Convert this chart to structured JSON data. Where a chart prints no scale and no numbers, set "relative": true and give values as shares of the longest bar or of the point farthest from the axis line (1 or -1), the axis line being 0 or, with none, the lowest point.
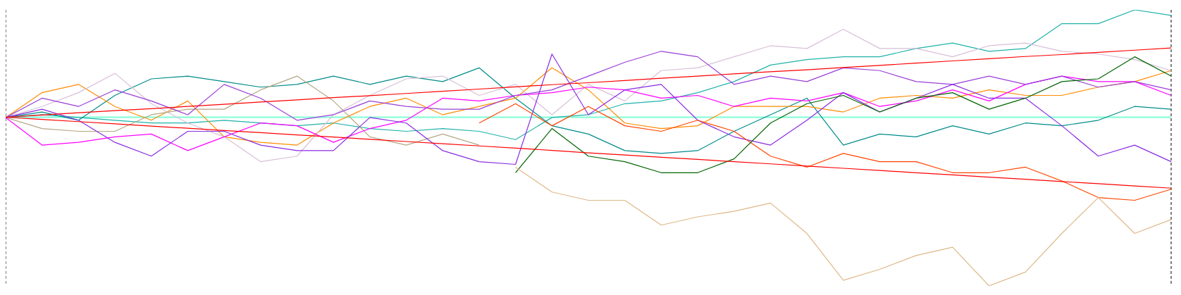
{
  "chart_data": {
    "type": "line",
    "relative": true,
    "grid": "x",
    "tick_labels": false,
    "marker": "none",
    "line_style": "solid",
    "categories": [
      null,
      null,
      null,
      null,
      null,
      null,
      null,
      null,
      null,
      null,
      null,
      null,
      null,
      null,
      null,
      null,
      null,
      null,
      null,
      null,
      null,
      null,
      null,
      null,
      null,
      null,
      null,
      null,
      null,
      null,
      null,
      null,
      null
    ],
    "ref_lines": [
      {
        "axis": "y",
        "value": 0.611,
        "color": "#7fffd4"
      }
    ],
    "series": [
      {
        "color": "#20b2aa",
        "values": [
          0.61,
          0.62,
          0.61,
          0.6,
          0.59,
          0.59,
          0.6,
          0.59,
          0.58,
          0.59,
          0.57,
          0.56,
          0.57,
          0.56,
          0.53,
          0.61,
          0.62,
          0.66,
          0.67,
          0.7,
          0.74,
          0.8,
          0.82,
          0.83,
          0.83,
          0.86,
          0.88,
          0.85,
          0.86,
          0.95,
          0.95,
          1,
          0.98
        ]
      },
      {
        "color": "#008b8b",
        "values": [
          0.61,
          0.63,
          0.6,
          0.69,
          0.75,
          0.76,
          0.74,
          0.72,
          0.73,
          0.76,
          0.73,
          0.76,
          0.74,
          0.79,
          0.68,
          0.58,
          0.55,
          0.49,
          0.48,
          0.49,
          0.56,
          0.62,
          0.68,
          0.51,
          0.55,
          0.54,
          0.58,
          0.55,
          0.59,
          0.58,
          0.6,
          0.65,
          0.64
        ]
      },
      {
        "color": "#ff8c00",
        "values": [
          0.61,
          0.7,
          0.73,
          0.65,
          0.6,
          0.67,
          0.54,
          0.52,
          0.51,
          0.59,
          0.65,
          0.68,
          0.62,
          0.65,
          0.68,
          0.79,
          0.71,
          0.59,
          0.57,
          0.58,
          0.65,
          0.65,
          0.65,
          0.63,
          0.68,
          0.69,
          0.68,
          0.71,
          0.69,
          0.69,
          0.72,
          0.74,
          0.78
        ]
      },
      {
        "color": "#d8bfd8",
        "values": [
          0.61,
          0.65,
          0.7,
          0.77,
          0.66,
          0.59,
          0.54,
          0.45,
          0.47,
          0.62,
          0.69,
          0.75,
          0.76,
          0.69,
          0.73,
          0.62,
          0.73,
          0.67,
          0.78,
          0.79,
          0.83,
          0.87,
          0.86,
          0.93,
          0.86,
          0.86,
          0.83,
          0.87,
          0.88,
          0.85,
          0.84,
          0.82,
          0.78
        ]
      },
      {
        "color": "#b4a782",
        "values": [
          0.61,
          0.57,
          0.56,
          0.56,
          0.62,
          0.64,
          0.64,
          0.71,
          0.76,
          0.67,
          0.54,
          0.51,
          0.55,
          0.51,
          null,
          null,
          null,
          null,
          null,
          null,
          null,
          null,
          null,
          null,
          null,
          null,
          null,
          null,
          null,
          null,
          null,
          null,
          null
        ]
      },
      {
        "color": "#ff00ff",
        "values": [
          0.61,
          0.51,
          0.52,
          0.54,
          0.55,
          0.49,
          0.54,
          0.59,
          0.58,
          0.52,
          0.57,
          0.6,
          0.68,
          0.67,
          0.69,
          0.7,
          0.72,
          0.71,
          0.68,
          0.69,
          0.65,
          0.68,
          0.67,
          0.7,
          0.65,
          0.67,
          0.71,
          0.67,
          0.73,
          0.76,
          0.74,
          0.74,
          0.69
        ]
      },
      {
        "color": "#9a3fd8",
        "values": [
          0.61,
          0.68,
          0.65,
          0.71,
          0.67,
          0.62,
          0.73,
          0.68,
          0.6,
          0.62,
          0.67,
          0.65,
          0.64,
          0.64,
          0.69,
          0.71,
          0.76,
          0.81,
          0.85,
          0.83,
          0.73,
          0.76,
          0.74,
          0.79,
          0.78,
          0.74,
          0.73,
          0.76,
          0.73,
          0.76,
          0.72,
          0.74,
          0.71
        ]
      },
      {
        "color": "#8a2be2",
        "values": [
          0.61,
          0.64,
          0.6,
          0.52,
          0.47,
          0.56,
          0.56,
          0.51,
          0.49,
          0.49,
          0.61,
          0.59,
          0.49,
          0.45,
          0.44,
          0.84,
          0.62,
          0.71,
          0.73,
          0.6,
          0.54,
          0.51,
          0.6,
          0.7,
          0.63,
          0.68,
          0.73,
          0.68,
          0.68,
          0.58,
          0.47,
          0.51,
          0.45
        ]
      },
      {
        "color": "#ff4500",
        "values": [
          null,
          null,
          null,
          null,
          null,
          null,
          null,
          null,
          null,
          null,
          null,
          null,
          null,
          0.59,
          0.66,
          0.58,
          0.65,
          0.58,
          0.56,
          0.6,
          0.56,
          0.47,
          0.43,
          0.48,
          0.45,
          0.45,
          0.41,
          0.41,
          0.43,
          0.38,
          0.32,
          0.31,
          0.35
        ]
      },
      {
        "color": "#006400",
        "values": [
          null,
          null,
          null,
          null,
          null,
          null,
          null,
          null,
          null,
          null,
          null,
          null,
          null,
          null,
          0.41,
          0.57,
          0.47,
          0.45,
          0.41,
          0.41,
          0.46,
          0.59,
          0.66,
          0.69,
          0.63,
          0.68,
          0.7,
          0.64,
          0.68,
          0.74,
          0.75,
          0.83,
          0.76
        ]
      },
      {
        "color": "#deb887",
        "values": [
          null,
          null,
          null,
          null,
          null,
          null,
          null,
          null,
          null,
          null,
          null,
          null,
          null,
          null,
          0.43,
          0.34,
          0.31,
          0.31,
          0.22,
          0.25,
          0.27,
          0.3,
          0.19,
          0.02,
          0.06,
          0.11,
          0.14,
          0,
          0.05,
          0.19,
          0.32,
          0.19,
          0.24
        ]
      },
      {
        "type": "line",
        "color": "#ff0000",
        "values": [
          0.611,
          0.619,
          0.627,
          0.635,
          0.642,
          0.65,
          0.658,
          0.666,
          0.674,
          0.682,
          0.689,
          0.697,
          0.705,
          0.713,
          0.721,
          0.729,
          0.736,
          0.744,
          0.752,
          0.76,
          0.768,
          0.776,
          0.783,
          0.791,
          0.799,
          0.807,
          0.815,
          0.823,
          0.831,
          0.838,
          0.846,
          0.854,
          0.862
        ]
      },
      {
        "type": "line",
        "color": "#ff0000",
        "values": [
          0.611,
          0.603,
          0.595,
          0.587,
          0.579,
          0.571,
          0.563,
          0.555,
          0.547,
          0.539,
          0.531,
          0.523,
          0.515,
          0.507,
          0.499,
          0.491,
          0.482,
          0.474,
          0.466,
          0.458,
          0.45,
          0.442,
          0.434,
          0.426,
          0.418,
          0.41,
          0.402,
          0.394,
          0.386,
          0.378,
          0.37,
          0.362,
          0.354
        ]
      }
    ]
  }
}
